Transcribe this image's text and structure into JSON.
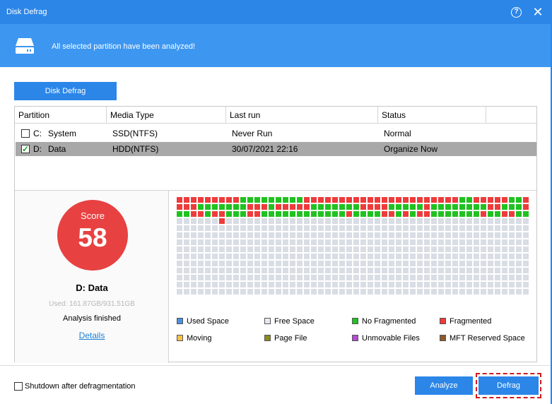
{
  "window": {
    "title": "Disk Defrag",
    "help_glyph": "?",
    "close_glyph": "✕"
  },
  "banner": {
    "message": "All selected partition have been analyzed!",
    "icon": "hard-drive-icon"
  },
  "tab": {
    "label": "Disk Defrag"
  },
  "table": {
    "headers": [
      "Partition",
      "Media Type",
      "Last run",
      "Status"
    ],
    "rows": [
      {
        "checked": false,
        "drive": "C:",
        "name": "System",
        "media": "SSD(NTFS)",
        "last_run": "Never Run",
        "status": "Normal"
      },
      {
        "checked": true,
        "drive": "D:",
        "name": "Data",
        "media": "HDD(NTFS)",
        "last_run": "30/07/2021 22:16",
        "status": "Organize Now"
      }
    ]
  },
  "score": {
    "label": "Score",
    "value": "58"
  },
  "partition": {
    "title": "D:  Data",
    "used": "Used: 161.87GB/931.51GB",
    "status": "Analysis finished",
    "details_link": "Details"
  },
  "cluster_map": {
    "columns": 50,
    "rows": 14,
    "colors": {
      "free": "#d9dde4",
      "no_fragmented": "#1fc21f",
      "fragmented": "#ee3b3b"
    },
    "row1": "RRRRRRRRRGGGGGGGGGRRRRRRRRRRRRRRRRRRRRRRGGRRRRRGGRRR",
    "row2": "RRRGGGGGGGRRRGRRRRRGGGGGGGRRRRGGGGGRGGGGGGGGRRGGGRGG",
    "row3": "GGRRGRRGGGRRGGGGGGGGGGGGRGGGGRRGRGRRGGGGGGGRGGRRGGGR",
    "row4": "FFFFFFRFFFFFFFFFFFFFFFFFFFFFFFFFFFFFFFFFFFFFFFFFFF"
  },
  "legend": [
    {
      "label": "Used Space",
      "color": "#4a90e2"
    },
    {
      "label": "Free Space",
      "color": "#e6eaf0"
    },
    {
      "label": "No Fragmented",
      "color": "#1fc21f"
    },
    {
      "label": "Fragmented",
      "color": "#ee3b3b"
    },
    {
      "label": "Moving",
      "color": "#f5c04a"
    },
    {
      "label": "Page File",
      "color": "#8b8b1a"
    },
    {
      "label": "Unmovable Files",
      "color": "#b44ad6"
    },
    {
      "label": "MFT Reserved Space",
      "color": "#8b5a2b"
    }
  ],
  "footer": {
    "shutdown_label": "Shutdown after defragmentation",
    "analyze_label": "Analyze",
    "defrag_label": "Defrag"
  }
}
